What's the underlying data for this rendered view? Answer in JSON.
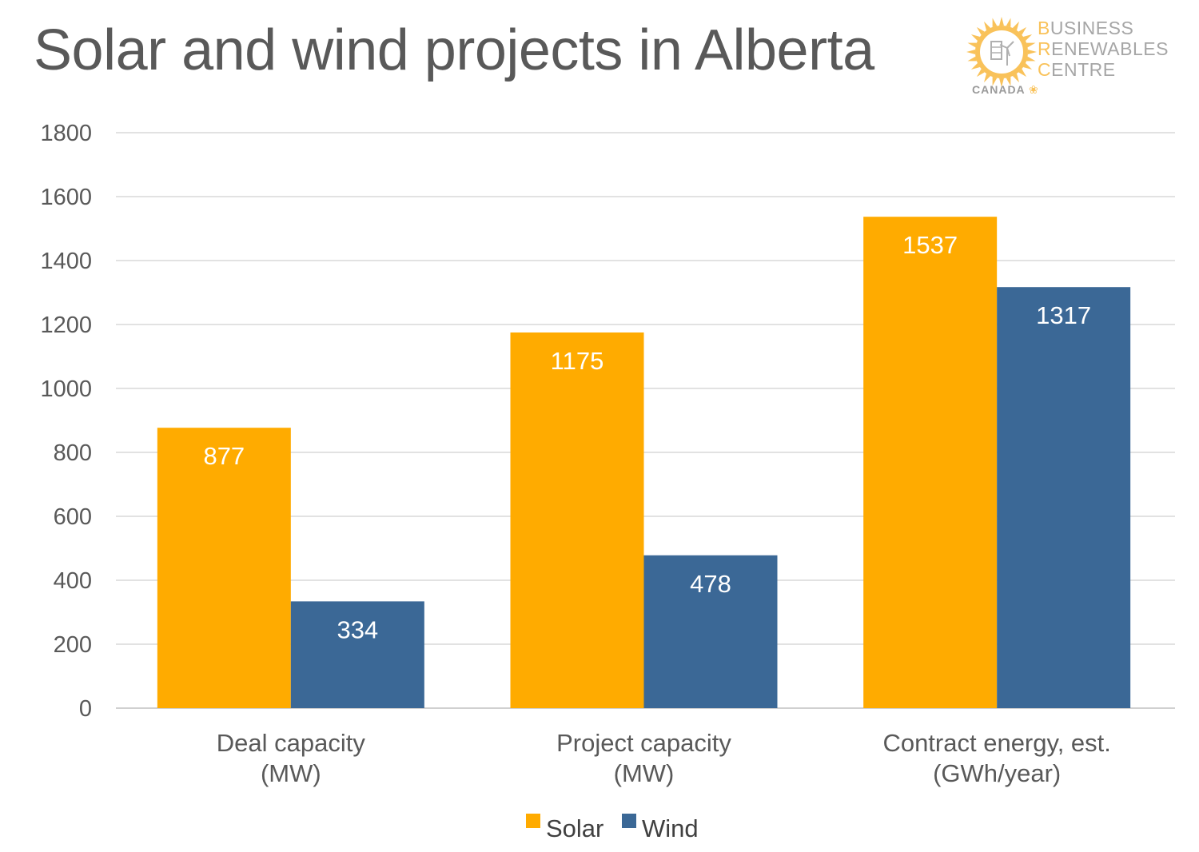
{
  "header": {
    "title": "Solar and wind projects in Alberta"
  },
  "logo": {
    "line1_cap": "B",
    "line1_rest": "USINESS",
    "line2_cap": "R",
    "line2_rest": "ENEWABLES",
    "line3_cap": "C",
    "line3_rest": "ENTRE",
    "country": "CANADA",
    "accent_color": "#f9c25a"
  },
  "chart_data": {
    "type": "bar",
    "title": "Solar and wind projects in Alberta",
    "categories": [
      [
        "Deal capacity",
        "(MW)"
      ],
      [
        "Project capacity",
        "(MW)"
      ],
      [
        "Contract energy, est.",
        "(GWh/year)"
      ]
    ],
    "series": [
      {
        "name": "Solar",
        "color": "#ffab00",
        "values": [
          877,
          1175,
          1537
        ]
      },
      {
        "name": "Wind",
        "color": "#3b6896",
        "values": [
          334,
          478,
          1317
        ]
      }
    ],
    "ylim": [
      0,
      1800
    ],
    "yticks": [
      0,
      200,
      400,
      600,
      800,
      1000,
      1200,
      1400,
      1600,
      1800
    ],
    "grid": true,
    "legend_position": "bottom",
    "data_labels": true,
    "xlabel": "",
    "ylabel": ""
  }
}
